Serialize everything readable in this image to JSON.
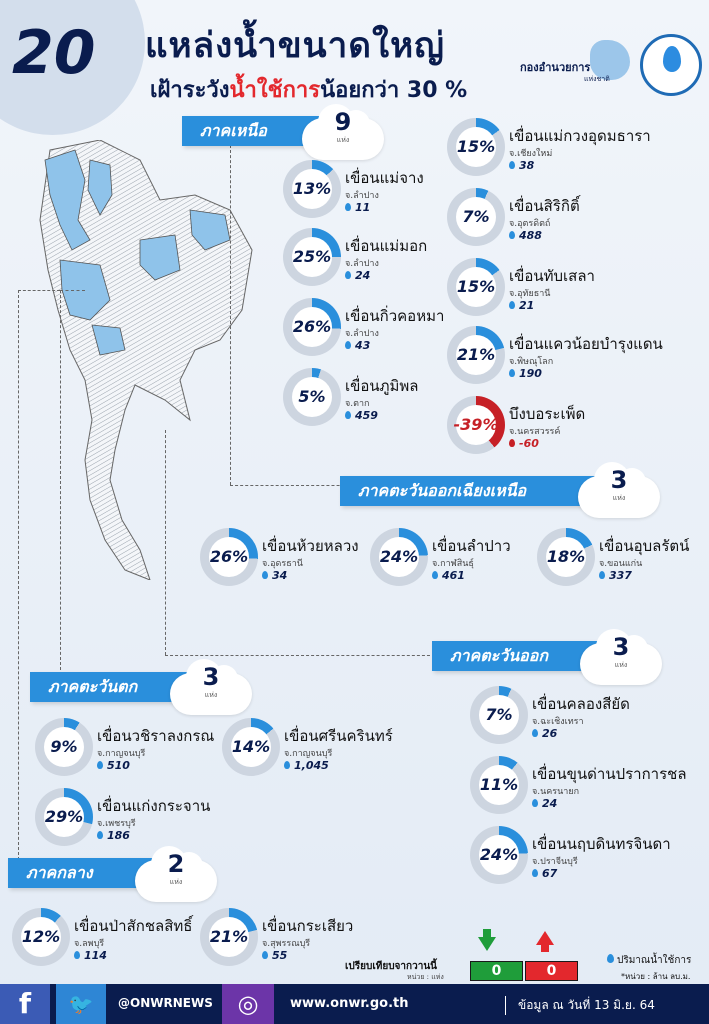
{
  "header": {
    "count": "20",
    "title": "แหล่งน้ำขนาดใหญ่",
    "subtitle_prefix": "เฝ้าระวัง",
    "subtitle_red": "น้ำใช้การ",
    "subtitle_suffix": "น้อยกว่า 30 %",
    "logo_text": "กองอำนวยการ",
    "logo_sub": "แห่งชาติ"
  },
  "unit_label": "แห่ง",
  "regions": {
    "north": {
      "name": "ภาคเหนือ",
      "count": "9"
    },
    "northeast": {
      "name": "ภาคตะวันออกเฉียงเหนือ",
      "count": "3"
    },
    "east": {
      "name": "ภาคตะวันออก",
      "count": "3"
    },
    "west": {
      "name": "ภาคตะวันตก",
      "count": "3"
    },
    "central": {
      "name": "ภาคกลาง",
      "count": "2"
    }
  },
  "dams": [
    {
      "name": "เขื่อนแม่จาง",
      "province": "จ.ลำปาง",
      "pct": 13,
      "pct_label": "13%",
      "vol": "11"
    },
    {
      "name": "เขื่อนแม่มอก",
      "province": "จ.ลำปาง",
      "pct": 25,
      "pct_label": "25%",
      "vol": "24"
    },
    {
      "name": "เขื่อนกิ่วคอหมา",
      "province": "จ.ลำปาง",
      "pct": 26,
      "pct_label": "26%",
      "vol": "43"
    },
    {
      "name": "เขื่อนภูมิพล",
      "province": "จ.ตาก",
      "pct": 5,
      "pct_label": "5%",
      "vol": "459"
    },
    {
      "name": "เขื่อนแม่กวงอุดมธารา",
      "province": "จ.เชียงใหม่",
      "pct": 15,
      "pct_label": "15%",
      "vol": "38"
    },
    {
      "name": "เขื่อนสิริกิติ์",
      "province": "จ.อุตรดิตถ์",
      "pct": 7,
      "pct_label": "7%",
      "vol": "488"
    },
    {
      "name": "เขื่อนทับเสลา",
      "province": "จ.อุทัยธานี",
      "pct": 15,
      "pct_label": "15%",
      "vol": "21"
    },
    {
      "name": "เขื่อนแควน้อยบำรุงแดน",
      "province": "จ.พิษณุโลก",
      "pct": 21,
      "pct_label": "21%",
      "vol": "190"
    },
    {
      "name": "บึงบอระเพ็ด",
      "province": "จ.นครสวรรค์",
      "pct": -39,
      "pct_label": "-39%",
      "vol": "-60"
    },
    {
      "name": "เขื่อนห้วยหลวง",
      "province": "จ.อุดรธานี",
      "pct": 26,
      "pct_label": "26%",
      "vol": "34"
    },
    {
      "name": "เขื่อนลำปาว",
      "province": "จ.กาฬสินธุ์",
      "pct": 24,
      "pct_label": "24%",
      "vol": "461"
    },
    {
      "name": "เขื่อนอุบลรัตน์",
      "province": "จ.ขอนแก่น",
      "pct": 18,
      "pct_label": "18%",
      "vol": "337"
    },
    {
      "name": "เขื่อนคลองสียัด",
      "province": "จ.ฉะเชิงเทรา",
      "pct": 7,
      "pct_label": "7%",
      "vol": "26"
    },
    {
      "name": "เขื่อนขุนด่านปราการชล",
      "province": "จ.นครนายก",
      "pct": 11,
      "pct_label": "11%",
      "vol": "24"
    },
    {
      "name": "เขื่อนนฤบดินทรจินดา",
      "province": "จ.ปราจีนบุรี",
      "pct": 24,
      "pct_label": "24%",
      "vol": "67"
    },
    {
      "name": "เขื่อนวชิราลงกรณ",
      "province": "จ.กาญจนบุรี",
      "pct": 9,
      "pct_label": "9%",
      "vol": "510"
    },
    {
      "name": "เขื่อนศรีนครินทร์",
      "province": "จ.กาญจนบุรี",
      "pct": 14,
      "pct_label": "14%",
      "vol": "1,045"
    },
    {
      "name": "เขื่อนแก่งกระจาน",
      "province": "จ.เพชรบุรี",
      "pct": 29,
      "pct_label": "29%",
      "vol": "186"
    },
    {
      "name": "เขื่อนป่าสักชลสิทธิ์",
      "province": "จ.ลพบุรี",
      "pct": 12,
      "pct_label": "12%",
      "vol": "114"
    },
    {
      "name": "เขื่อนกระเสียว",
      "province": "จ.สุพรรณบุรี",
      "pct": 21,
      "pct_label": "21%",
      "vol": "55"
    }
  ],
  "legend": {
    "compare_label": "เปรียบเทียบจากวานนี้",
    "compare_unit": "หน่วย : แห่ง",
    "down_value": "0",
    "up_value": "0",
    "down_color": "#1f9d3a",
    "up_color": "#e3282d",
    "volume_label": "ปริมาณน้ำใช้การ",
    "volume_unit": "*หน่วย : ล้าน ลบ.ม."
  },
  "footer": {
    "social_handle": "@ONWRNEWS",
    "website": "www.onwr.go.th",
    "date_label": "ข้อมูล ณ วันที่ 13 มิ.ย. 64"
  }
}
